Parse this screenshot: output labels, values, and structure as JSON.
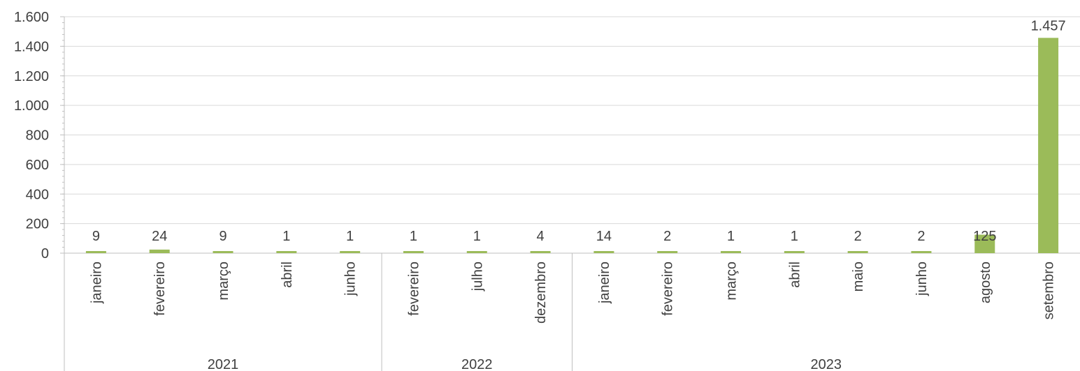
{
  "chart_data": {
    "type": "bar",
    "title": "",
    "xlabel": "",
    "ylabel": "",
    "ylim": [
      0,
      1600
    ],
    "y_ticks": [
      0,
      200,
      400,
      600,
      800,
      1000,
      1200,
      1400,
      1600
    ],
    "y_tick_labels": [
      "0",
      "200",
      "400",
      "600",
      "800",
      "1.000",
      "1.200",
      "1.400",
      "1.600"
    ],
    "grid": "horizontal",
    "bar_color": "#9bbb59",
    "gridline_color": "#d9d9d9",
    "axis_color": "#bfbfbf",
    "groups": [
      {
        "label": "2021",
        "categories": [
          "janeiro",
          "fevereiro",
          "março",
          "abril",
          "junho"
        ]
      },
      {
        "label": "2022",
        "categories": [
          "fevereiro",
          "julho",
          "dezembro"
        ]
      },
      {
        "label": "2023",
        "categories": [
          "janeiro",
          "fevereiro",
          "março",
          "abril",
          "maio",
          "junho",
          "agosto",
          "setembro"
        ]
      }
    ],
    "categories": [
      "janeiro",
      "fevereiro",
      "março",
      "abril",
      "junho",
      "fevereiro",
      "julho",
      "dezembro",
      "janeiro",
      "fevereiro",
      "março",
      "abril",
      "maio",
      "junho",
      "agosto",
      "setembro"
    ],
    "values": [
      9,
      24,
      9,
      1,
      1,
      1,
      1,
      4,
      14,
      2,
      1,
      1,
      2,
      2,
      125,
      1457
    ],
    "data_labels": [
      "9",
      "24",
      "9",
      "1",
      "1",
      "1",
      "1",
      "4",
      "14",
      "2",
      "1",
      "1",
      "2",
      "2",
      "125",
      "1.457"
    ]
  }
}
